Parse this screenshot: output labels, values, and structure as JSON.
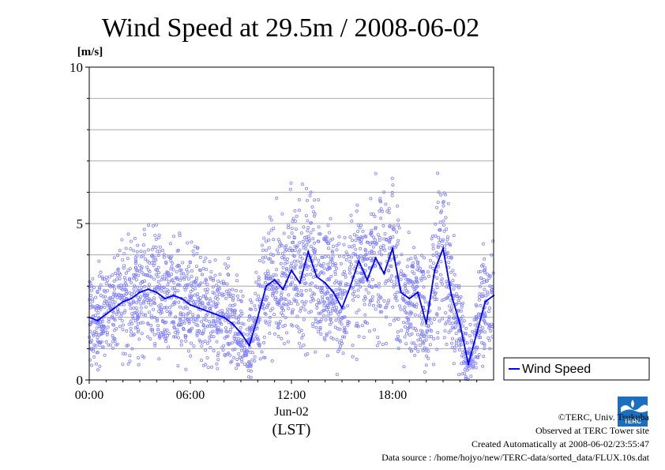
{
  "chart_data": {
    "type": "line",
    "title": "Wind Speed at 29.5m / 2008-06-02",
    "ylabel": "[m/s]",
    "xlabel": "(LST)",
    "date_label": "Jun-02",
    "ylim": [
      0,
      10
    ],
    "xlim_hours": [
      0,
      24
    ],
    "y_ticks": [
      {
        "value": 0,
        "label": "0"
      },
      {
        "value": 5,
        "label": "5"
      },
      {
        "value": 10,
        "label": "10"
      }
    ],
    "x_ticks": [
      {
        "value": 0,
        "label": "00:00"
      },
      {
        "value": 6,
        "label": "06:00"
      },
      {
        "value": 12,
        "label": "12:00"
      },
      {
        "value": 18,
        "label": "18:00"
      }
    ],
    "grid": true,
    "legend_position": "right",
    "series": [
      {
        "name": "Wind Speed",
        "color": "#0000ff",
        "scatter_color": "#8080ff",
        "x_hours": [
          0,
          0.5,
          1,
          1.5,
          2,
          2.5,
          3,
          3.5,
          4,
          4.5,
          5,
          5.5,
          6,
          6.5,
          7,
          7.5,
          8,
          8.5,
          9,
          9.5,
          10,
          10.5,
          11,
          11.5,
          12,
          12.5,
          13,
          13.5,
          14,
          14.5,
          15,
          15.5,
          16,
          16.5,
          17,
          17.5,
          18,
          18.5,
          19,
          19.5,
          20,
          20.5,
          21,
          21.5,
          22,
          22.5,
          23,
          23.5,
          24
        ],
        "values": [
          2.0,
          1.9,
          2.1,
          2.3,
          2.5,
          2.6,
          2.8,
          2.9,
          2.8,
          2.6,
          2.7,
          2.6,
          2.4,
          2.3,
          2.2,
          2.1,
          2.0,
          1.8,
          1.5,
          1.1,
          2.0,
          3.0,
          3.2,
          2.9,
          3.5,
          3.1,
          4.1,
          3.3,
          3.1,
          2.8,
          2.3,
          3.0,
          3.8,
          3.2,
          3.9,
          3.4,
          4.2,
          2.8,
          2.6,
          2.8,
          1.8,
          3.5,
          4.2,
          2.7,
          1.8,
          0.5,
          1.5,
          2.5,
          2.7
        ]
      }
    ]
  },
  "footer": {
    "copyright": "©TERC, Univ. Tsukuba",
    "observed": "Observed at TERC Tower site",
    "created": "Created Automatically at 2008-06-02/23:55:47",
    "source": "Data source : /home/hojyo/new/TERC-data/sorted_data/FLUX.10s.dat"
  },
  "logo": {
    "text": "TERC",
    "color": "#1a6fc0"
  }
}
